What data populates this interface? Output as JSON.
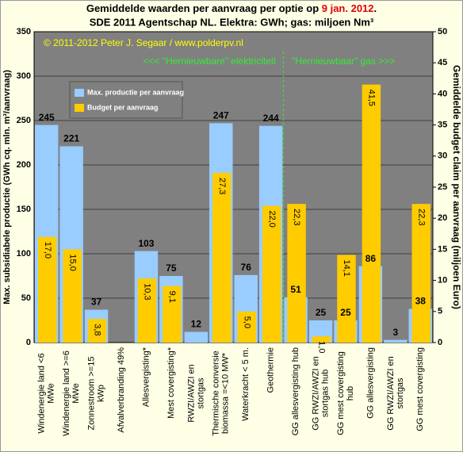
{
  "chart_data": {
    "type": "bar",
    "title_parts": [
      "Gemiddelde waarden per aanvraag per optie op ",
      "9 jan. 2012",
      "."
    ],
    "subtitle": "SDE 2011 Agentschap NL. Elektra: GWh; gas: miljoen Nm³",
    "annotations": [
      "© 2011-2012 Peter J. Segaar / www.polderpv.nl",
      "<<< \"Hernieuwbare\" elektriciteit",
      "\"Hernieuwbaar\" gas >>>"
    ],
    "ylabel": "Max. subsidiabele productie (GWh cq. mln. m³/aanvraag)",
    "y2label": "Gemiddelde budget claim per aanvraag (miljoen Euro)",
    "categories": [
      [
        "Windenergie land <6",
        "MWe"
      ],
      [
        "Windenergie land >=6",
        "MWe"
      ],
      [
        "Zonnestroom >=15",
        "kWp"
      ],
      [
        "Afvalverbranding 49%"
      ],
      [
        "Allesvergisting*"
      ],
      [
        "Mest covergisting*"
      ],
      [
        "RWZI/AWZI en",
        "stortgas"
      ],
      [
        "Thermische conversie",
        "biomassa =<10 MW*"
      ],
      [
        "Waterkracht < 5 m."
      ],
      [
        "Geothermie"
      ],
      [
        "GG allesvergisting hub"
      ],
      [
        "GG RWZI/AWZI en",
        "stortgas hub"
      ],
      [
        "GG mest covergisting",
        "hub"
      ],
      [
        "GG allesvergisting"
      ],
      [
        "GG RWZI/AWZI en",
        "stortgas"
      ],
      [
        "GG mest covergisting"
      ]
    ],
    "series": [
      {
        "name": "Max. productie per aanvraag",
        "color": "#99ccff",
        "values": [
          245,
          221,
          37,
          null,
          103,
          75,
          12,
          247,
          76,
          244,
          51,
          25,
          25,
          86,
          3,
          38
        ]
      },
      {
        "name": "Budget per aanvraag",
        "color": "#ffcc00",
        "axis": "y2",
        "values": [
          17.0,
          15.0,
          3.8,
          null,
          10.3,
          9.1,
          null,
          27.3,
          5.0,
          22.0,
          22.3,
          1.0,
          14.1,
          41.5,
          null,
          22.3
        ],
        "value_labels": [
          "17,0",
          "15,0",
          "3,8",
          null,
          "10,3",
          "9,1",
          null,
          "27,3",
          "5,0",
          "22,0",
          "22,3",
          "1,0",
          "14,1",
          "41,5",
          null,
          "22,3"
        ]
      }
    ],
    "ylim": [
      0,
      350
    ],
    "yticks": [
      0,
      50,
      100,
      150,
      200,
      250,
      300,
      350
    ],
    "y2lim": [
      0,
      50
    ],
    "y2ticks": [
      0,
      5,
      10,
      15,
      20,
      25,
      30,
      35,
      40,
      45,
      50
    ],
    "grid": true,
    "legend": "upper left"
  }
}
